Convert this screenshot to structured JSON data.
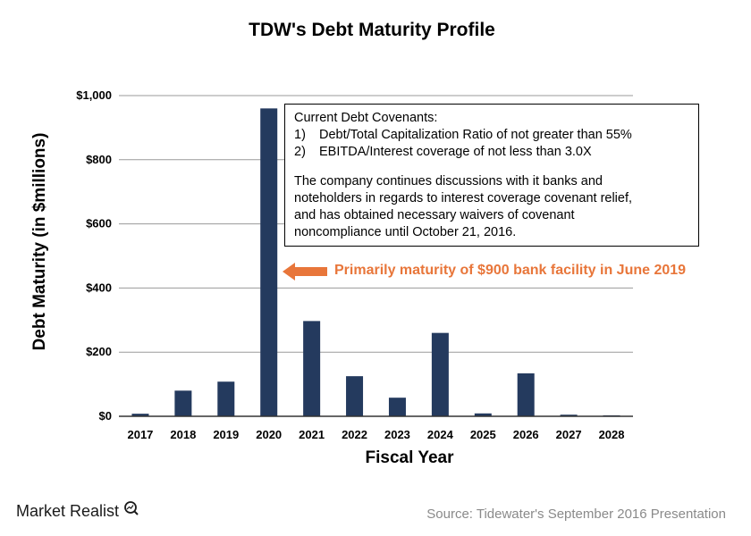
{
  "chart_data": {
    "type": "bar",
    "title": "TDW's Debt Maturity Profile",
    "xlabel": "Fiscal Year",
    "ylabel": "Debt Maturity (in $millions)",
    "categories": [
      "2017",
      "2018",
      "2019",
      "2020",
      "2021",
      "2022",
      "2023",
      "2024",
      "2025",
      "2026",
      "2027",
      "2028"
    ],
    "values": [
      8,
      80,
      108,
      960,
      297,
      125,
      58,
      260,
      9,
      134,
      5,
      3
    ],
    "ylim": [
      0,
      1000
    ],
    "yticks": [
      0,
      200,
      400,
      600,
      800,
      1000
    ],
    "ytick_labels": [
      "$0",
      "$200",
      "$400",
      "$600",
      "$800",
      "$1,000"
    ],
    "grid": true,
    "bar_color": "#243a5e"
  },
  "annotations": {
    "covenants": {
      "heading": "Current Debt Covenants:",
      "items": [
        {
          "num": "1)",
          "text": "Debt/Total Capitalization Ratio of not greater than 55%"
        },
        {
          "num": "2)",
          "text": "EBITDA/Interest coverage of not less than 3.0X"
        }
      ],
      "paragraph": [
        "The company continues discussions with it banks and",
        "noteholders in regards to interest coverage covenant relief,",
        "and has obtained necessary waivers of covenant",
        "noncompliance until October 21, 2016."
      ]
    },
    "callout": "Primarily maturity of $900 bank facility in June 2019",
    "callout_color": "#e8763a"
  },
  "footer": {
    "brand": "Market Realist",
    "brand_icon": "magnifier-chart-icon",
    "source": "Source: Tidewater's September 2016 Presentation"
  }
}
